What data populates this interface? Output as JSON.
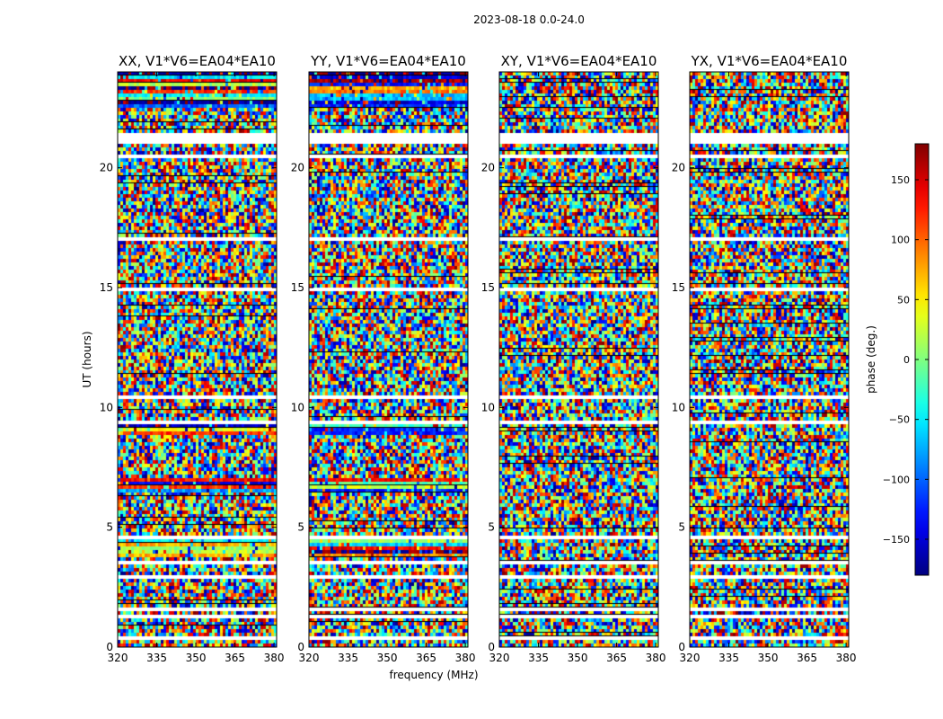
{
  "figure": {
    "suptitle": "2023-08-18 0.0-24.0"
  },
  "chart_data": {
    "type": "heatmap",
    "panels": [
      {
        "title": "XX, V1*V6=EA04*EA10",
        "polarization": "XX"
      },
      {
        "title": "YY, V1*V6=EA04*EA10",
        "polarization": "YY"
      },
      {
        "title": "XY, V1*V6=EA04*EA10",
        "polarization": "XY"
      },
      {
        "title": "YX, V1*V6=EA04*EA10",
        "polarization": "YX"
      }
    ],
    "x": {
      "label": "frequency (MHz)",
      "range": [
        320,
        381
      ],
      "ticks": [
        "320",
        "335",
        "350",
        "365",
        "380"
      ],
      "tick_values": [
        320,
        335,
        350,
        365,
        380
      ]
    },
    "y": {
      "label": "UT (hours)",
      "range": [
        0,
        24
      ],
      "ticks": [
        "0",
        "5",
        "10",
        "15",
        "20"
      ],
      "tick_values": [
        0,
        5,
        10,
        15,
        20
      ]
    },
    "colorbar": {
      "label": "phase (deg.)",
      "range": [
        -180,
        180
      ],
      "ticks": [
        "150",
        "100",
        "50",
        "0",
        "−50",
        "−100",
        "−150"
      ],
      "tick_values": [
        150,
        100,
        50,
        0,
        -50,
        -100,
        -150
      ],
      "colormap": "jet"
    },
    "flagged_ut_bands_hours": [
      [
        0.3,
        0.45
      ],
      [
        0.55,
        0.6
      ],
      [
        1.25,
        1.4
      ],
      [
        1.55,
        1.65
      ],
      [
        1.95,
        2.0
      ],
      [
        2.8,
        2.95
      ],
      [
        3.5,
        3.55
      ],
      [
        4.55,
        4.65
      ],
      [
        4.95,
        5.0
      ],
      [
        5.05,
        5.1
      ],
      [
        6.25,
        6.3
      ],
      [
        9.35,
        9.4
      ],
      [
        10.15,
        10.2
      ],
      [
        10.35,
        10.45
      ],
      [
        12.3,
        12.35
      ],
      [
        12.45,
        12.5
      ],
      [
        14.85,
        15.0
      ],
      [
        15.3,
        15.35
      ],
      [
        16.3,
        16.4
      ],
      [
        17.0,
        17.05
      ],
      [
        19.3,
        19.35
      ],
      [
        20.45,
        20.5
      ],
      [
        21.0,
        21.5
      ],
      [
        22.15,
        22.25
      ],
      [
        22.3,
        22.35
      ]
    ],
    "coherent_ut_bands_parallel_hands_hours": [
      [
        3.8,
        4.5
      ],
      [
        6.5,
        7.0
      ],
      [
        8.9,
        9.3
      ],
      [
        22.5,
        24.0
      ]
    ]
  }
}
